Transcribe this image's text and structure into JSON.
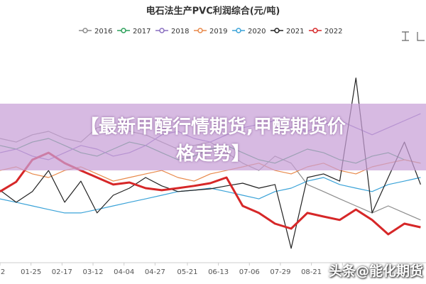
{
  "chart_data": {
    "type": "line",
    "title": "电石法生产PVC利润综合(元/吨)",
    "x": [
      2,
      14,
      26,
      38,
      50,
      62,
      74,
      86,
      98,
      110,
      122,
      134,
      146,
      158,
      170,
      182,
      194,
      206,
      218,
      230,
      242,
      254,
      266,
      278,
      290,
      302,
      314
    ],
    "xlim": [
      2,
      318
    ],
    "xticks": [
      {
        "value": 2,
        "label": "2"
      },
      {
        "value": 25,
        "label": "01-25"
      },
      {
        "value": 48,
        "label": "02-17"
      },
      {
        "value": 71,
        "label": "03-12"
      },
      {
        "value": 94,
        "label": "04-04"
      },
      {
        "value": 117,
        "label": "04-27"
      },
      {
        "value": 141,
        "label": "05-21"
      },
      {
        "value": 164,
        "label": "06-13"
      },
      {
        "value": 187,
        "label": "07-06"
      },
      {
        "value": 210,
        "label": "07-29"
      },
      {
        "value": 233,
        "label": "08-21"
      },
      {
        "value": 256,
        "label": "09-13"
      }
    ],
    "ylim": [
      0,
      100
    ],
    "series": [
      {
        "name": "2016",
        "color": "#8c8c8c",
        "values": [
          54.7,
          53.1,
          56.3,
          57.8,
          54.7,
          53.1,
          59.4,
          60.9,
          57.8,
          56.3,
          53.1,
          50,
          51.6,
          53.1,
          48.4,
          43.8,
          40.6,
          46.9,
          43.8,
          34.4,
          31.3,
          28.1,
          25,
          21.9,
          25,
          21.9,
          18.8
        ]
      },
      {
        "name": "2017",
        "color": "#2ca05a",
        "values": [
          51.6,
          50,
          53.1,
          54.7,
          51.6,
          48.4,
          46.9,
          50,
          53.1,
          51.6,
          48.4,
          45.3,
          46.9,
          50,
          51.6,
          48.4,
          45.3,
          43.8,
          46.9,
          50,
          48.4,
          45.3,
          43.8,
          46.9,
          48.4,
          45.3,
          43.8
        ]
      },
      {
        "name": "2018",
        "color": "#8a6fc0",
        "values": [
          48.4,
          50,
          46.9,
          45.3,
          48.4,
          51.6,
          50,
          46.9,
          48.4,
          51.6,
          56.3,
          57.8,
          54.7,
          53.1,
          56.3,
          59.4,
          60.9,
          62.5,
          59.4,
          57.8,
          60.9,
          62.5,
          59.4,
          56.3,
          59.4,
          62.5,
          65.6
        ]
      },
      {
        "name": "2019",
        "color": "#e8894a",
        "values": [
          40.6,
          42.2,
          39.1,
          37.5,
          40.6,
          42.2,
          39.1,
          35.9,
          37.5,
          39.1,
          40.6,
          37.5,
          35.9,
          39.1,
          40.6,
          42.2,
          43.8,
          40.6,
          39.1,
          42.2,
          43.8,
          40.6,
          39.1,
          42.2,
          43.8,
          45.3,
          43.8
        ]
      },
      {
        "name": "2020",
        "color": "#3ba3d8",
        "values": [
          28.1,
          26.6,
          25,
          23.4,
          21.9,
          21.9,
          23.4,
          25,
          26.6,
          28.1,
          29.7,
          31.3,
          31.9,
          32.8,
          31.3,
          29.7,
          28.1,
          31.3,
          32.8,
          35.9,
          37.5,
          34.4,
          32.8,
          31.3,
          34.4,
          35.9,
          37.5
        ]
      },
      {
        "name": "2021",
        "color": "#222222",
        "values": [
          31.9,
          26.6,
          31.3,
          40.6,
          26.6,
          35.9,
          21.9,
          29.7,
          32.8,
          37.5,
          33.8,
          31.3,
          31.9,
          32.5,
          33.8,
          35,
          32.8,
          34.4,
          6.3,
          37.5,
          39.1,
          35.9,
          81.3,
          21.9,
          37.5,
          53.1,
          34.4
        ]
      },
      {
        "name": "2022",
        "color": "#d62728",
        "values": [
          31.3,
          35.6,
          45.3,
          48.4,
          43.8,
          40.6,
          37.5,
          34.4,
          35.3,
          32.8,
          31.9,
          32.8,
          33.8,
          35,
          37.5,
          25,
          21.9,
          17.2,
          15,
          21.9,
          20.3,
          18.8,
          23.4,
          18.8,
          12.5,
          17.2,
          15.6
        ]
      }
    ]
  },
  "banner": {
    "lines": [
      "【最新甲醇行情期货,甲醇期货价",
      "格走势】"
    ]
  },
  "watermark": "头条@能化期货"
}
